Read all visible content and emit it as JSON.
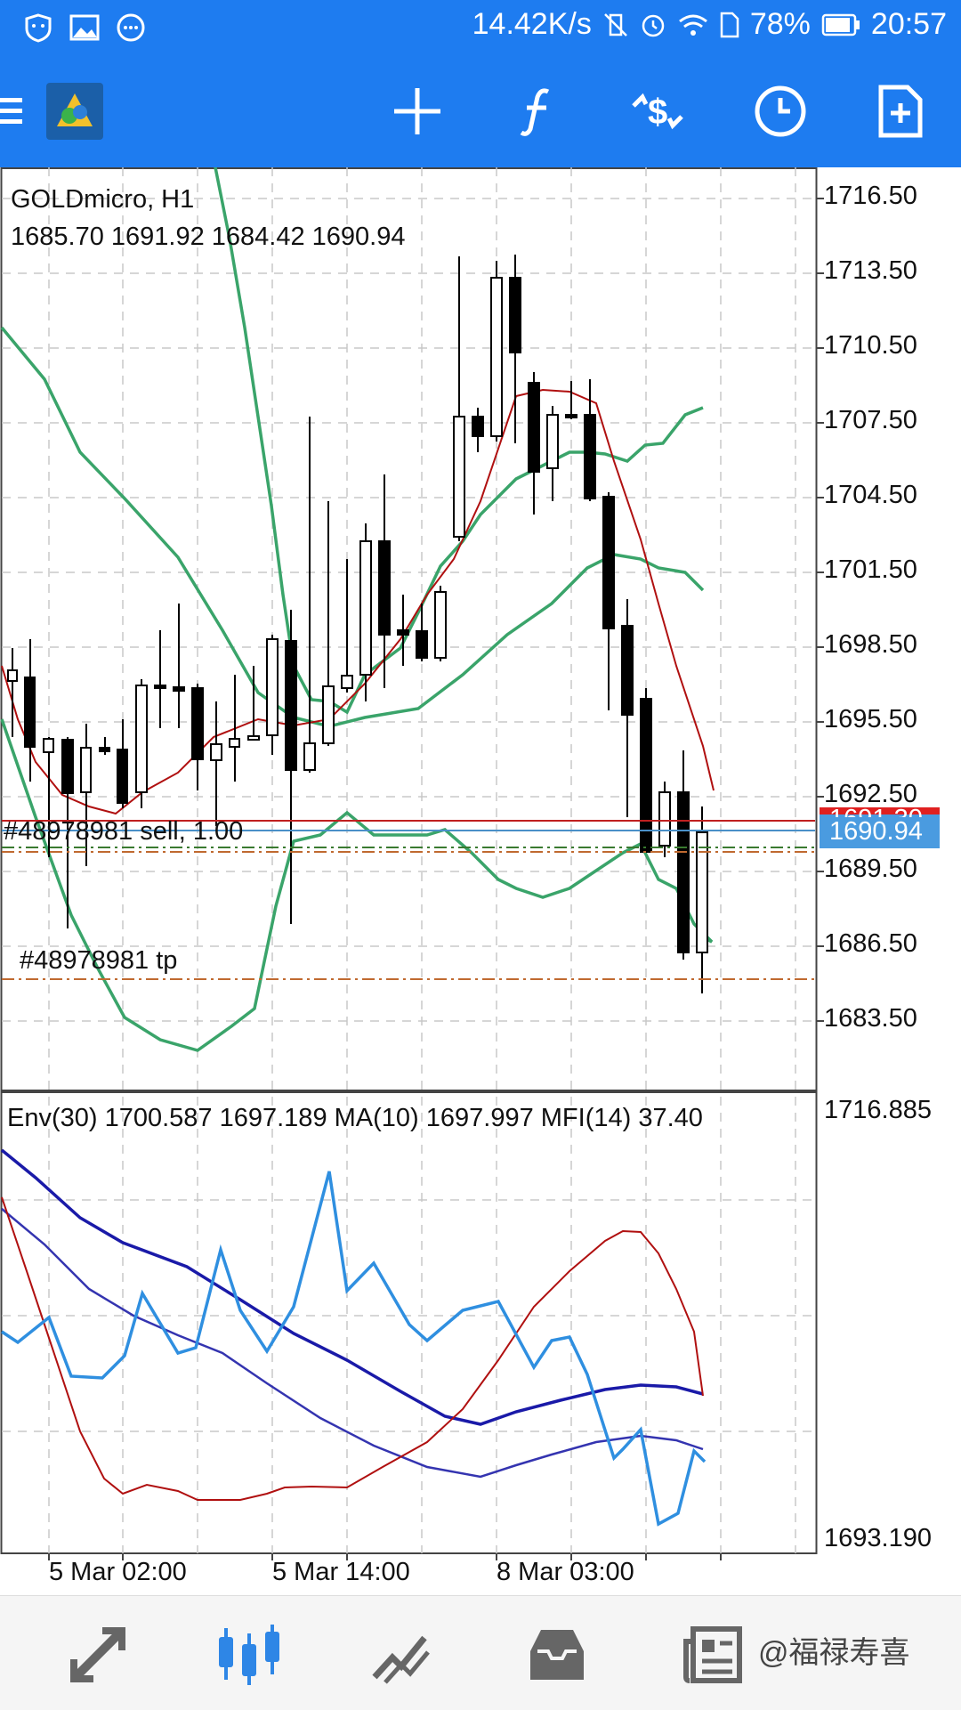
{
  "status_bar": {
    "net_speed": "14.42K/s",
    "battery_pct": "78%",
    "time": "20:57"
  },
  "toolbar": {
    "icons": [
      "menu-icon",
      "app-logo",
      "crosshair-icon",
      "function-icon",
      "trade-icon",
      "clock-icon",
      "new-document-icon"
    ]
  },
  "chart": {
    "symbol": "GOLDmicro, H1",
    "ohlc": "1685.70 1691.92 1684.42 1690.94",
    "price_labels": [
      "1716.50",
      "1713.50",
      "1710.50",
      "1707.50",
      "1704.50",
      "1701.50",
      "1698.50",
      "1695.50",
      "1692.50",
      "1689.50",
      "1686.50",
      "1683.50"
    ],
    "ask_price": "1691.30",
    "bid_price": "1690.94",
    "order_label": "#48978981 sell, 1.00",
    "tp_label": "#48978981 tp",
    "indicator_caption": "Env(30) 1700.587 1697.189 MA(10) 1697.997 MFI(14) 37.40",
    "indicator_max": "1716.885",
    "indicator_min": "1693.190",
    "time_labels": [
      "5 Mar 02:00",
      "5 Mar 14:00",
      "8 Mar 03:00"
    ],
    "colors": {
      "bull_candle": "#ffffff",
      "bear_candle": "#000000",
      "ma": "#b01010",
      "bands": "#3aa46a",
      "env_upper": "#1a1aa8",
      "mfi": "#2f8fe0",
      "ask_line": "#c02020",
      "bid_line": "#4a90c8"
    }
  },
  "bottom_nav": {
    "items": [
      "quotes-icon",
      "chart-icon",
      "trade-icon",
      "history-icon",
      "news-icon"
    ],
    "watermark": "@福禄寿喜"
  }
}
